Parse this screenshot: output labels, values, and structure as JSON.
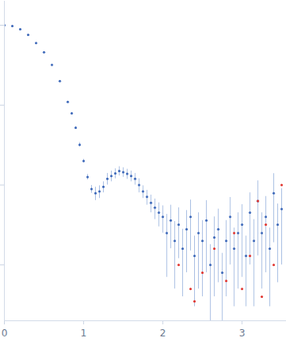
{
  "chart_data": {
    "type": "scatter",
    "xlim": [
      0,
      3.56
    ],
    "xticks": [
      0,
      1,
      2,
      3
    ],
    "ylim": [
      0.0002,
      2
    ],
    "yticks": [
      1,
      0.1,
      0.01,
      0.001
    ],
    "log": "y",
    "tick_labels": "x",
    "grid": false,
    "series": [
      {
        "color": "#3a66b8",
        "marker": "circle",
        "x": [
          0,
          0.1,
          0.2,
          0.3,
          0.4,
          0.5,
          0.6,
          0.7,
          0.8,
          0.85,
          0.9,
          0.95,
          1.0,
          1.05,
          1.1,
          1.15,
          1.2,
          1.25,
          1.3,
          1.35,
          1.4,
          1.45,
          1.5,
          1.55,
          1.6,
          1.65,
          1.7,
          1.75,
          1.8,
          1.85,
          1.9,
          1.95,
          2.0,
          2.05,
          2.1,
          2.15,
          2.2,
          2.25,
          2.3,
          2.35,
          2.4,
          2.45,
          2.5,
          2.55,
          2.6,
          2.65,
          2.7,
          2.75,
          2.8,
          2.85,
          2.9,
          2.95,
          3.0,
          3.05,
          3.1,
          3.15,
          3.2,
          3.25,
          3.3,
          3.35,
          3.4,
          3.45,
          3.5
        ],
        "values": [
          1.0,
          0.98,
          0.89,
          0.76,
          0.6,
          0.46,
          0.32,
          0.2,
          0.11,
          0.079,
          0.052,
          0.032,
          0.02,
          0.0126,
          0.0089,
          0.0079,
          0.0083,
          0.0095,
          0.012,
          0.013,
          0.014,
          0.015,
          0.0145,
          0.0138,
          0.013,
          0.012,
          0.01,
          0.0083,
          0.0071,
          0.006,
          0.0052,
          0.0045,
          0.004,
          0.0025,
          0.0036,
          0.002,
          0.0032,
          0.0016,
          0.0028,
          0.004,
          0.0013,
          0.0025,
          0.002,
          0.0036,
          0.001,
          0.0022,
          0.0028,
          0.0008,
          0.002,
          0.004,
          0.0016,
          0.0025,
          0.0032,
          0.0013,
          0.0045,
          0.002,
          0.0063,
          0.0025,
          0.004,
          0.0016,
          0.0079,
          0.0032,
          0.005
        ],
        "errors": [
          0.002,
          0.002,
          0.002,
          0.002,
          0.002,
          0.002,
          0.002,
          0.002,
          0.002,
          0.002,
          0.002,
          0.002,
          0.001,
          0.001,
          0.001,
          0.0015,
          0.0015,
          0.0015,
          0.002,
          0.002,
          0.002,
          0.002,
          0.002,
          0.002,
          0.002,
          0.002,
          0.002,
          0.0015,
          0.0015,
          0.0015,
          0.0015,
          0.0015,
          0.0015,
          0.0018,
          0.002,
          0.0015,
          0.002,
          0.0012,
          0.002,
          0.0025,
          0.001,
          0.002,
          0.0016,
          0.0028,
          0.0008,
          0.0018,
          0.0022,
          0.0006,
          0.0016,
          0.003,
          0.0013,
          0.002,
          0.0025,
          0.001,
          0.0035,
          0.0017,
          0.005,
          0.002,
          0.0032,
          0.0013,
          0.006,
          0.0026,
          0.004
        ]
      },
      {
        "color": "#e0302a",
        "marker": "circle",
        "x": [
          2.2,
          2.35,
          2.4,
          2.5,
          2.65,
          2.8,
          2.9,
          3.0,
          3.1,
          3.2,
          3.25,
          3.3,
          3.4,
          3.5
        ],
        "values": [
          0.001,
          0.0005,
          0.00035,
          0.0008,
          0.0016,
          0.00063,
          0.0025,
          0.0005,
          0.0013,
          0.0063,
          0.0004,
          0.0032,
          0.001,
          0.01
        ]
      }
    ]
  }
}
